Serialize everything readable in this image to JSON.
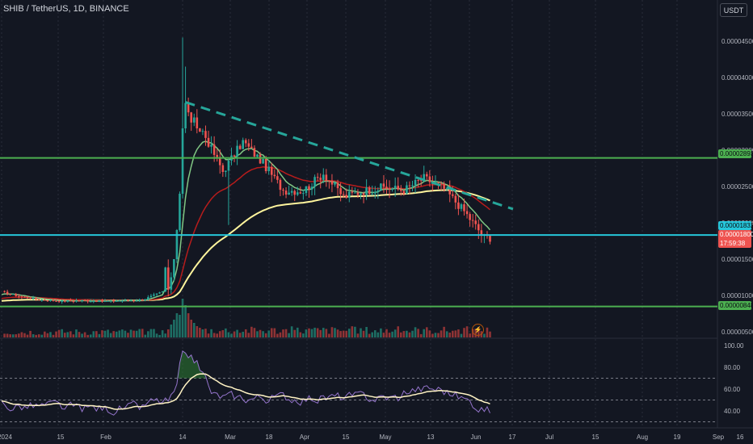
{
  "header": {
    "symbol_title": "SHIB / TetherUS, 1D, BINANCE",
    "currency_button": "USDT"
  },
  "price_axis": {
    "ticks": [
      "0.00004500",
      "0.00004000",
      "0.00003500",
      "0.00003000",
      "0.00002500",
      "0.00002000",
      "0.00001500",
      "0.00001000",
      "0.00000500"
    ]
  },
  "rsi_axis": {
    "ticks": [
      "100.00",
      "80.00",
      "60.00",
      "40.00"
    ]
  },
  "time_axis": {
    "ticks": [
      "2024",
      "15",
      "Feb",
      "14",
      "Mar",
      "18",
      "Apr",
      "15",
      "May",
      "13",
      "Jun",
      "17",
      "Jul",
      "15",
      "Aug",
      "19",
      "Sep",
      "16"
    ]
  },
  "price_tags": {
    "resistance_level": "0.00002893",
    "support_cyan_level": "0.00001832",
    "current_price": "0.00001800",
    "countdown": "17:59:38",
    "support_low_level": "0.00000848"
  },
  "colors": {
    "background": "#131722",
    "green_level": "#4caf50",
    "cyan_level": "#26c6da",
    "dashed_trendline": "#26a69a",
    "candle_up": "#26a69a",
    "candle_down": "#ef5350",
    "ma_fast": "#81c784",
    "ma_mid": "#b71c1c",
    "ma_slow": "#fff59d",
    "rsi_line": "#9575cd",
    "rsi_ma": "#fff3c4"
  },
  "chart_data": {
    "type": "candlestick",
    "title": "SHIB / TetherUS, 1D, BINANCE",
    "ylim": [
      3.5e-06,
      4.7e-05
    ],
    "horizontal_levels": [
      {
        "value": 2.893e-05,
        "color": "green"
      },
      {
        "value": 1.832e-05,
        "color": "cyan"
      },
      {
        "value": 8.48e-06,
        "color": "green"
      }
    ],
    "trendline": {
      "from": [
        "Mar 5",
        3.66e-05
      ],
      "to": [
        "Jun 27",
        2.19e-05
      ],
      "style": "dashed"
    },
    "weekly_closes": [
      [
        "Jan 1",
        1.05e-05
      ],
      [
        "Jan 8",
        9.8e-06
      ],
      [
        "Jan 15",
        9.4e-06
      ],
      [
        "Jan 22",
        9.2e-06
      ],
      [
        "Jan 29",
        9.3e-06
      ],
      [
        "Feb 5",
        9.2e-06
      ],
      [
        "Feb 12",
        9.3e-06
      ],
      [
        "Feb 19",
        9.4e-06
      ],
      [
        "Feb 26",
        1.05e-05
      ],
      [
        "Mar 4",
        3.38e-05
      ],
      [
        "Mar 11",
        3.26e-05
      ],
      [
        "Mar 18",
        2.71e-05
      ],
      [
        "Mar 25",
        3.12e-05
      ],
      [
        "Apr 1",
        2.82e-05
      ],
      [
        "Apr 8",
        2.45e-05
      ],
      [
        "Apr 15",
        2.44e-05
      ],
      [
        "Apr 22",
        2.68e-05
      ],
      [
        "Apr 29",
        2.36e-05
      ],
      [
        "May 6",
        2.44e-05
      ],
      [
        "May 13",
        2.49e-05
      ],
      [
        "May 20",
        2.45e-05
      ],
      [
        "May 27",
        2.62e-05
      ],
      [
        "Jun 3",
        2.47e-05
      ],
      [
        "Jun 10",
        2.16e-05
      ],
      [
        "Jun 17",
        1.8e-05
      ]
    ],
    "last_price": 1.8e-05,
    "peak_high": 4.55e-05,
    "rsi": {
      "ylim": [
        30,
        100
      ],
      "levels": [
        70,
        50,
        30
      ],
      "peak": 95,
      "last": 38
    }
  }
}
